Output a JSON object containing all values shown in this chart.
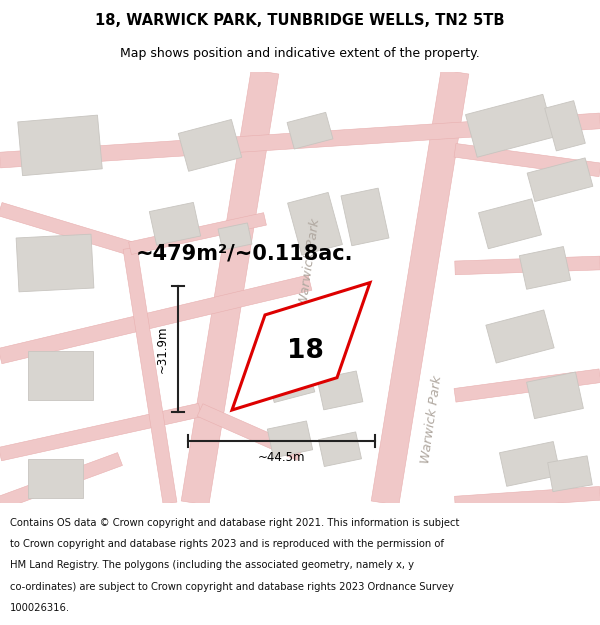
{
  "title_line1": "18, WARWICK PARK, TUNBRIDGE WELLS, TN2 5TB",
  "title_line2": "Map shows position and indicative extent of the property.",
  "area_text": "~479m²/~0.118ac.",
  "number_label": "18",
  "dim_width": "~44.5m",
  "dim_height": "~31.9m",
  "road_label_top": "Warwick Park",
  "road_label_bottom": "Warwick Park",
  "footer_lines": [
    "Contains OS data © Crown copyright and database right 2021. This information is subject",
    "to Crown copyright and database rights 2023 and is reproduced with the permission of",
    "HM Land Registry. The polygons (including the associated geometry, namely x, y",
    "co-ordinates) are subject to Crown copyright and database rights 2023 Ordnance Survey",
    "100026316."
  ],
  "map_bg": "#f2f0ed",
  "road_color": "#f0c8c8",
  "road_edge": "#e8b0b0",
  "building_fill": "#d8d5d0",
  "building_edge": "#c8c5c0",
  "highlight_color": "#dd0000",
  "dim_color": "#222222",
  "white": "#ffffff",
  "title_fontsize": 10.5,
  "subtitle_fontsize": 9,
  "footer_fontsize": 7.2,
  "area_fontsize": 15,
  "num_fontsize": 19,
  "dim_fontsize": 8.5,
  "road_label_fontsize": 9.5
}
